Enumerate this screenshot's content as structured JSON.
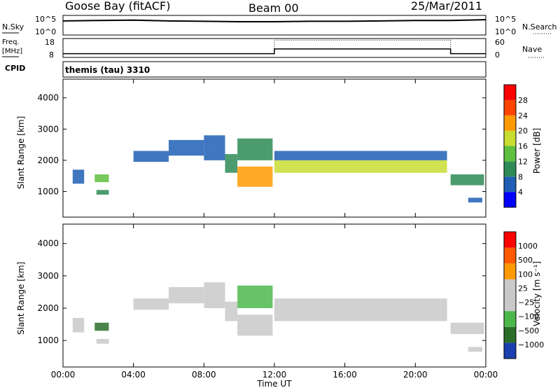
{
  "header": {
    "station": "Goose Bay (fitACF)",
    "beam": "Beam 00",
    "date": "25/Mar/2011"
  },
  "params": {
    "nsky_label": "N.Sky",
    "nsearch_label": "N.Search",
    "noise_ticks": [
      "10^5",
      "10^0"
    ],
    "freq_label": "Freq.",
    "freq_unit": "[MHz]",
    "freq_ticks": [
      "18",
      "8"
    ],
    "nave_label": "Nave",
    "nave_ticks": [
      "60",
      "0"
    ],
    "cpid_label": "CPID",
    "cpid_value": "themis (tau) 3310"
  },
  "chart_data": [
    {
      "type": "line",
      "name": "noise",
      "series": [
        {
          "name": "N.Sky",
          "x": [
            "00:00",
            "02:00",
            "04:00",
            "06:00",
            "08:00",
            "10:00",
            "12:00",
            "14:00",
            "16:00",
            "18:00",
            "20:00",
            "22:00",
            "24:00"
          ],
          "values": [
            3.6,
            3.7,
            3.8,
            3.6,
            3.5,
            3.4,
            3.4,
            3.5,
            3.5,
            3.6,
            3.7,
            3.7,
            3.9
          ]
        }
      ],
      "ylim": [
        0,
        5
      ]
    },
    {
      "type": "line",
      "name": "frequency-nave",
      "freq_ylim": [
        8,
        18
      ],
      "nave_ylim": [
        0,
        60
      ],
      "freq_segments": [
        {
          "start": "00:00",
          "end": "12:00",
          "value": 10.0
        },
        {
          "start": "12:00",
          "end": "22:00",
          "value": 12.5
        },
        {
          "start": "22:00",
          "end": "24:00",
          "value": 10.0
        }
      ],
      "nave_segments": [
        {
          "start": "00:00",
          "end": "12:00",
          "value": 12
        },
        {
          "start": "12:00",
          "end": "22:00",
          "value": 55
        },
        {
          "start": "22:00",
          "end": "24:00",
          "value": 12
        }
      ]
    },
    {
      "type": "heatmap",
      "name": "power",
      "xlabel": "",
      "ylabel": "Slant Range [km]",
      "yticks": [
        "4000",
        "3000",
        "2000",
        "1000"
      ],
      "yvals": [
        4000,
        3000,
        2000,
        1000
      ],
      "ylim": [
        180,
        4600
      ],
      "colorbar_label": "Power [dB]",
      "colorbar_ticks": [
        "28",
        "24",
        "20",
        "16",
        "12",
        "8",
        "4"
      ],
      "colorbar_colors": [
        "#0000ff",
        "#1e5fb5",
        "#2e8b57",
        "#5fbf3f",
        "#c8dc32",
        "#ff9a00",
        "#ff4400",
        "#ff0000"
      ],
      "echo_regions": [
        {
          "t0": 0.55,
          "t1": 1.2,
          "r0": 1250,
          "r1": 1700,
          "level": 1
        },
        {
          "t0": 1.8,
          "t1": 2.6,
          "r0": 1300,
          "r1": 1550,
          "level": 3
        },
        {
          "t0": 1.9,
          "t1": 2.6,
          "r0": 900,
          "r1": 1050,
          "level": 2
        },
        {
          "t0": 4.0,
          "t1": 6.0,
          "r0": 1950,
          "r1": 2300,
          "level": 1
        },
        {
          "t0": 6.0,
          "t1": 8.0,
          "r0": 2150,
          "r1": 2650,
          "level": 1
        },
        {
          "t0": 8.0,
          "t1": 9.2,
          "r0": 2000,
          "r1": 2800,
          "level": 1
        },
        {
          "t0": 9.2,
          "t1": 9.9,
          "r0": 1600,
          "r1": 2200,
          "level": 2
        },
        {
          "t0": 9.9,
          "t1": 11.9,
          "r0": 1150,
          "r1": 1800,
          "level": 5
        },
        {
          "t0": 9.9,
          "t1": 11.9,
          "r0": 2000,
          "r1": 2700,
          "level": 2
        },
        {
          "t0": 12.0,
          "t1": 21.8,
          "r0": 1600,
          "r1": 2000,
          "level": 4
        },
        {
          "t0": 12.0,
          "t1": 21.8,
          "r0": 2000,
          "r1": 2300,
          "level": 1
        },
        {
          "t0": 22.0,
          "t1": 23.9,
          "r0": 1200,
          "r1": 1550,
          "level": 2
        },
        {
          "t0": 23.0,
          "t1": 23.8,
          "r0": 650,
          "r1": 800,
          "level": 1
        }
      ]
    },
    {
      "type": "heatmap",
      "name": "velocity",
      "xlabel": "Time UT",
      "ylabel": "Slant Range [km]",
      "yticks": [
        "4000",
        "3000",
        "2000",
        "1000"
      ],
      "yvals": [
        4000,
        3000,
        2000,
        1000
      ],
      "ylim": [
        180,
        4600
      ],
      "xticks": [
        "00:00",
        "04:00",
        "08:00",
        "12:00",
        "16:00",
        "20:00",
        "00:00"
      ],
      "xlim": [
        0,
        24
      ],
      "colorbar_label": "Velocity [m s⁻¹]",
      "colorbar_ticks": [
        "1000",
        "500",
        "100",
        "25",
        "−25",
        "−100",
        "−500",
        "−1000"
      ],
      "colorbar_colors": [
        "#1b3fae",
        "#2a6e2a",
        "#4cb84c",
        "#c9c9c9",
        "#c9c9c9",
        "#ff9a00",
        "#ff5a00",
        "#ff0000"
      ],
      "echo_regions": [
        {
          "t0": 0.55,
          "t1": 1.2,
          "r0": 1250,
          "r1": 1700,
          "level": 3
        },
        {
          "t0": 1.8,
          "t1": 2.6,
          "r0": 1300,
          "r1": 1550,
          "level": 1
        },
        {
          "t0": 1.9,
          "t1": 2.6,
          "r0": 900,
          "r1": 1050,
          "level": 3
        },
        {
          "t0": 4.0,
          "t1": 6.0,
          "r0": 1950,
          "r1": 2300,
          "level": 3
        },
        {
          "t0": 6.0,
          "t1": 8.0,
          "r0": 2150,
          "r1": 2650,
          "level": 3
        },
        {
          "t0": 8.0,
          "t1": 9.2,
          "r0": 2000,
          "r1": 2800,
          "level": 3
        },
        {
          "t0": 9.2,
          "t1": 9.9,
          "r0": 1600,
          "r1": 2200,
          "level": 3
        },
        {
          "t0": 9.9,
          "t1": 11.9,
          "r0": 1150,
          "r1": 1800,
          "level": 3
        },
        {
          "t0": 9.9,
          "t1": 11.9,
          "r0": 2000,
          "r1": 2700,
          "level": 2
        },
        {
          "t0": 12.0,
          "t1": 21.8,
          "r0": 1600,
          "r1": 2000,
          "level": 3
        },
        {
          "t0": 12.0,
          "t1": 21.8,
          "r0": 2000,
          "r1": 2300,
          "level": 3
        },
        {
          "t0": 22.0,
          "t1": 23.9,
          "r0": 1200,
          "r1": 1550,
          "level": 3
        },
        {
          "t0": 23.0,
          "t1": 23.8,
          "r0": 650,
          "r1": 800,
          "level": 3
        }
      ]
    }
  ]
}
